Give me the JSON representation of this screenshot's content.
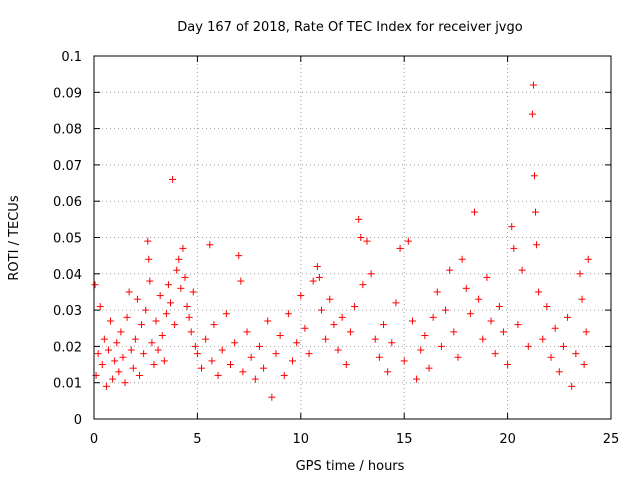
{
  "chart_data": {
    "type": "scatter",
    "title": "Day 167 of 2018, Rate Of TEC Index for receiver jvgo",
    "xlabel": "GPS time / hours",
    "ylabel": "ROTI / TECUs",
    "xlim": [
      0,
      25
    ],
    "ylim": [
      0,
      0.1
    ],
    "grid": true,
    "marker": "plus",
    "color": "#ff0000",
    "x_ticks": [
      "0",
      "5",
      "10",
      "15",
      "20",
      "25"
    ],
    "y_ticks": [
      "0",
      "0.01",
      "0.02",
      "0.03",
      "0.04",
      "0.05",
      "0.06",
      "0.07",
      "0.08",
      "0.09",
      "0.1"
    ],
    "series": [
      {
        "name": "ROTI",
        "points": [
          [
            0.05,
            0.037
          ],
          [
            0.1,
            0.012
          ],
          [
            0.2,
            0.018
          ],
          [
            0.3,
            0.031
          ],
          [
            0.4,
            0.015
          ],
          [
            0.5,
            0.022
          ],
          [
            0.6,
            0.009
          ],
          [
            0.7,
            0.019
          ],
          [
            0.8,
            0.027
          ],
          [
            0.9,
            0.011
          ],
          [
            1.0,
            0.016
          ],
          [
            1.1,
            0.021
          ],
          [
            1.2,
            0.013
          ],
          [
            1.3,
            0.024
          ],
          [
            1.4,
            0.017
          ],
          [
            1.5,
            0.01
          ],
          [
            1.6,
            0.028
          ],
          [
            1.7,
            0.035
          ],
          [
            1.8,
            0.019
          ],
          [
            1.9,
            0.014
          ],
          [
            2.0,
            0.022
          ],
          [
            2.1,
            0.033
          ],
          [
            2.2,
            0.012
          ],
          [
            2.3,
            0.026
          ],
          [
            2.4,
            0.018
          ],
          [
            2.5,
            0.03
          ],
          [
            2.6,
            0.049
          ],
          [
            2.65,
            0.044
          ],
          [
            2.7,
            0.038
          ],
          [
            2.8,
            0.021
          ],
          [
            2.9,
            0.015
          ],
          [
            3.0,
            0.027
          ],
          [
            3.1,
            0.019
          ],
          [
            3.2,
            0.034
          ],
          [
            3.3,
            0.023
          ],
          [
            3.4,
            0.016
          ],
          [
            3.5,
            0.029
          ],
          [
            3.6,
            0.037
          ],
          [
            3.7,
            0.032
          ],
          [
            3.8,
            0.066
          ],
          [
            3.9,
            0.026
          ],
          [
            4.0,
            0.041
          ],
          [
            4.1,
            0.044
          ],
          [
            4.2,
            0.036
          ],
          [
            4.3,
            0.047
          ],
          [
            4.4,
            0.039
          ],
          [
            4.5,
            0.031
          ],
          [
            4.6,
            0.028
          ],
          [
            4.7,
            0.024
          ],
          [
            4.8,
            0.035
          ],
          [
            4.9,
            0.02
          ],
          [
            5.0,
            0.018
          ],
          [
            5.2,
            0.014
          ],
          [
            5.4,
            0.022
          ],
          [
            5.6,
            0.048
          ],
          [
            5.7,
            0.016
          ],
          [
            5.8,
            0.026
          ],
          [
            6.0,
            0.012
          ],
          [
            6.2,
            0.019
          ],
          [
            6.4,
            0.029
          ],
          [
            6.6,
            0.015
          ],
          [
            6.8,
            0.021
          ],
          [
            7.0,
            0.045
          ],
          [
            7.1,
            0.038
          ],
          [
            7.2,
            0.013
          ],
          [
            7.4,
            0.024
          ],
          [
            7.6,
            0.017
          ],
          [
            7.8,
            0.011
          ],
          [
            8.0,
            0.02
          ],
          [
            8.2,
            0.014
          ],
          [
            8.4,
            0.027
          ],
          [
            8.6,
            0.006
          ],
          [
            8.8,
            0.018
          ],
          [
            9.0,
            0.023
          ],
          [
            9.2,
            0.012
          ],
          [
            9.4,
            0.029
          ],
          [
            9.6,
            0.016
          ],
          [
            9.8,
            0.021
          ],
          [
            10.0,
            0.034
          ],
          [
            10.2,
            0.025
          ],
          [
            10.4,
            0.018
          ],
          [
            10.6,
            0.038
          ],
          [
            10.8,
            0.042
          ],
          [
            10.9,
            0.039
          ],
          [
            11.0,
            0.03
          ],
          [
            11.2,
            0.022
          ],
          [
            11.4,
            0.033
          ],
          [
            11.6,
            0.026
          ],
          [
            11.8,
            0.019
          ],
          [
            12.0,
            0.028
          ],
          [
            12.2,
            0.015
          ],
          [
            12.4,
            0.024
          ],
          [
            12.6,
            0.031
          ],
          [
            12.8,
            0.055
          ],
          [
            12.9,
            0.05
          ],
          [
            13.0,
            0.037
          ],
          [
            13.2,
            0.049
          ],
          [
            13.4,
            0.04
          ],
          [
            13.6,
            0.022
          ],
          [
            13.8,
            0.017
          ],
          [
            14.0,
            0.026
          ],
          [
            14.2,
            0.013
          ],
          [
            14.4,
            0.021
          ],
          [
            14.6,
            0.032
          ],
          [
            14.8,
            0.047
          ],
          [
            15.0,
            0.016
          ],
          [
            15.2,
            0.049
          ],
          [
            15.4,
            0.027
          ],
          [
            15.6,
            0.011
          ],
          [
            15.8,
            0.019
          ],
          [
            16.0,
            0.023
          ],
          [
            16.2,
            0.014
          ],
          [
            16.4,
            0.028
          ],
          [
            16.6,
            0.035
          ],
          [
            16.8,
            0.02
          ],
          [
            17.0,
            0.03
          ],
          [
            17.2,
            0.041
          ],
          [
            17.4,
            0.024
          ],
          [
            17.6,
            0.017
          ],
          [
            17.8,
            0.044
          ],
          [
            18.0,
            0.036
          ],
          [
            18.2,
            0.029
          ],
          [
            18.4,
            0.057
          ],
          [
            18.6,
            0.033
          ],
          [
            18.8,
            0.022
          ],
          [
            19.0,
            0.039
          ],
          [
            19.2,
            0.027
          ],
          [
            19.4,
            0.018
          ],
          [
            19.6,
            0.031
          ],
          [
            19.8,
            0.024
          ],
          [
            20.0,
            0.015
          ],
          [
            20.2,
            0.053
          ],
          [
            20.3,
            0.047
          ],
          [
            20.5,
            0.026
          ],
          [
            20.7,
            0.041
          ],
          [
            21.0,
            0.02
          ],
          [
            21.2,
            0.084
          ],
          [
            21.25,
            0.092
          ],
          [
            21.3,
            0.067
          ],
          [
            21.35,
            0.057
          ],
          [
            21.4,
            0.048
          ],
          [
            21.5,
            0.035
          ],
          [
            21.7,
            0.022
          ],
          [
            21.9,
            0.031
          ],
          [
            22.1,
            0.017
          ],
          [
            22.3,
            0.025
          ],
          [
            22.5,
            0.013
          ],
          [
            22.7,
            0.02
          ],
          [
            22.9,
            0.028
          ],
          [
            23.1,
            0.009
          ],
          [
            23.3,
            0.018
          ],
          [
            23.5,
            0.04
          ],
          [
            23.6,
            0.033
          ],
          [
            23.7,
            0.015
          ],
          [
            23.8,
            0.024
          ],
          [
            23.9,
            0.044
          ]
        ]
      }
    ]
  }
}
